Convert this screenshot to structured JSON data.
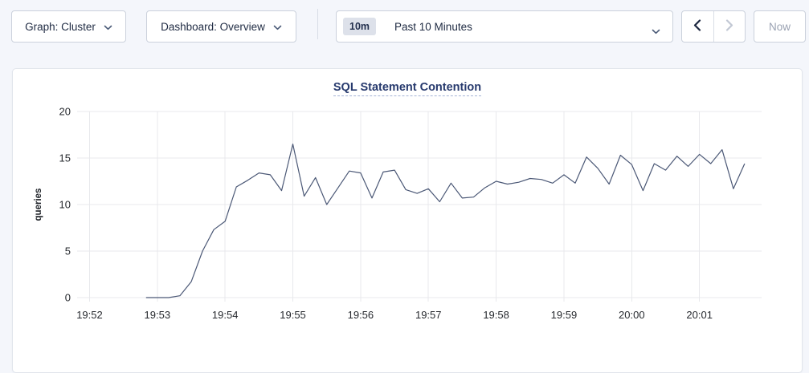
{
  "toolbar": {
    "graph_dropdown": {
      "label": "Graph: Cluster"
    },
    "dashboard_dropdown": {
      "label": "Dashboard: Overview"
    },
    "time_picker": {
      "badge": "10m",
      "label": "Past 10 Minutes"
    },
    "now_button": {
      "label": "Now"
    }
  },
  "chart_data": {
    "type": "line",
    "title": "SQL Statement Contention",
    "ylabel": "queries",
    "ylim": [
      0,
      20
    ],
    "yticks": [
      0,
      5,
      10,
      15,
      20
    ],
    "xticks": [
      "19:52",
      "19:53",
      "19:54",
      "19:55",
      "19:56",
      "19:57",
      "19:58",
      "19:59",
      "20:00",
      "20:01"
    ],
    "x_domain": [
      "19:51:49",
      "20:01:55"
    ],
    "grid": true,
    "legend": "none",
    "series": [
      {
        "name": "SQL Statement Contention",
        "color": "#4b5876",
        "points": [
          [
            "19:52:50",
            0
          ],
          [
            "19:53:00",
            0
          ],
          [
            "19:53:10",
            0
          ],
          [
            "19:53:20",
            0.2
          ],
          [
            "19:53:30",
            1.7
          ],
          [
            "19:53:40",
            5.0
          ],
          [
            "19:53:50",
            7.3
          ],
          [
            "19:54:00",
            8.2
          ],
          [
            "19:54:10",
            11.9
          ],
          [
            "19:54:20",
            12.6
          ],
          [
            "19:54:30",
            13.4
          ],
          [
            "19:54:40",
            13.2
          ],
          [
            "19:54:50",
            11.5
          ],
          [
            "19:55:00",
            16.5
          ],
          [
            "19:55:10",
            10.9
          ],
          [
            "19:55:20",
            12.9
          ],
          [
            "19:55:30",
            10.0
          ],
          [
            "19:55:40",
            11.8
          ],
          [
            "19:55:50",
            13.6
          ],
          [
            "19:56:00",
            13.4
          ],
          [
            "19:56:10",
            10.7
          ],
          [
            "19:56:20",
            13.5
          ],
          [
            "19:56:30",
            13.7
          ],
          [
            "19:56:40",
            11.6
          ],
          [
            "19:56:50",
            11.2
          ],
          [
            "19:57:00",
            11.7
          ],
          [
            "19:57:10",
            10.3
          ],
          [
            "19:57:20",
            12.3
          ],
          [
            "19:57:30",
            10.7
          ],
          [
            "19:57:40",
            10.8
          ],
          [
            "19:57:50",
            11.8
          ],
          [
            "19:58:00",
            12.5
          ],
          [
            "19:58:10",
            12.2
          ],
          [
            "19:58:20",
            12.4
          ],
          [
            "19:58:30",
            12.8
          ],
          [
            "19:58:40",
            12.7
          ],
          [
            "19:58:50",
            12.3
          ],
          [
            "19:59:00",
            13.2
          ],
          [
            "19:59:10",
            12.3
          ],
          [
            "19:59:20",
            15.1
          ],
          [
            "19:59:30",
            13.9
          ],
          [
            "19:59:40",
            12.2
          ],
          [
            "19:59:50",
            15.3
          ],
          [
            "20:00:00",
            14.3
          ],
          [
            "20:00:10",
            11.5
          ],
          [
            "20:00:20",
            14.4
          ],
          [
            "20:00:30",
            13.7
          ],
          [
            "20:00:40",
            15.2
          ],
          [
            "20:00:50",
            14.1
          ],
          [
            "20:01:00",
            15.4
          ],
          [
            "20:01:10",
            14.4
          ],
          [
            "20:01:20",
            15.9
          ],
          [
            "20:01:30",
            11.7
          ],
          [
            "20:01:40",
            14.4
          ]
        ]
      }
    ],
    "colors": {
      "line": "#4b5876",
      "grid": "#e8e9ec",
      "title": "#26396d"
    }
  }
}
